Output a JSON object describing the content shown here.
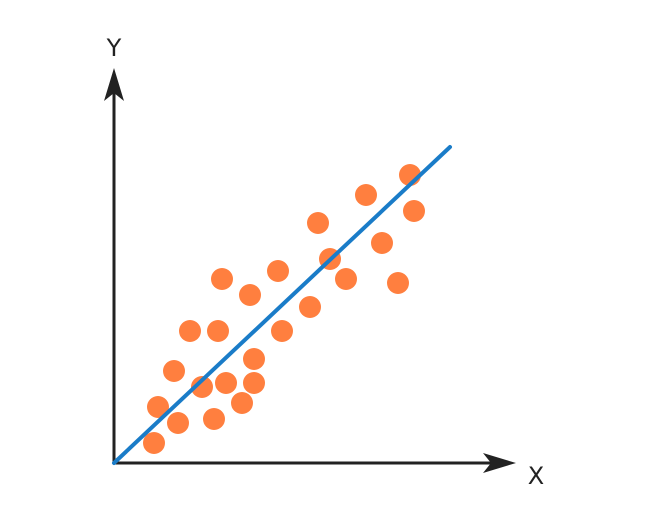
{
  "chart_data": {
    "type": "scatter",
    "title": "",
    "xlabel": "X",
    "ylabel": "Y",
    "xlim": [
      0,
      100
    ],
    "ylim": [
      0,
      100
    ],
    "grid": false,
    "legend": "none",
    "colors": {
      "points": "#ff7f3f",
      "trendline": "#1a7cc8",
      "axes": "#222222"
    },
    "points": [
      {
        "x": 10,
        "y": 5
      },
      {
        "x": 11,
        "y": 14
      },
      {
        "x": 16,
        "y": 10
      },
      {
        "x": 15,
        "y": 23
      },
      {
        "x": 19,
        "y": 33
      },
      {
        "x": 22,
        "y": 19
      },
      {
        "x": 25,
        "y": 11
      },
      {
        "x": 26,
        "y": 33
      },
      {
        "x": 28,
        "y": 20
      },
      {
        "x": 27,
        "y": 46
      },
      {
        "x": 32,
        "y": 15
      },
      {
        "x": 35,
        "y": 20
      },
      {
        "x": 35,
        "y": 26
      },
      {
        "x": 34,
        "y": 42
      },
      {
        "x": 42,
        "y": 33
      },
      {
        "x": 41,
        "y": 48
      },
      {
        "x": 49,
        "y": 39
      },
      {
        "x": 51,
        "y": 60
      },
      {
        "x": 54,
        "y": 51
      },
      {
        "x": 58,
        "y": 46
      },
      {
        "x": 63,
        "y": 67
      },
      {
        "x": 67,
        "y": 55
      },
      {
        "x": 71,
        "y": 45
      },
      {
        "x": 74,
        "y": 72
      },
      {
        "x": 75,
        "y": 63
      }
    ],
    "trendline": {
      "x": [
        0,
        84
      ],
      "y": [
        0,
        79
      ]
    }
  }
}
